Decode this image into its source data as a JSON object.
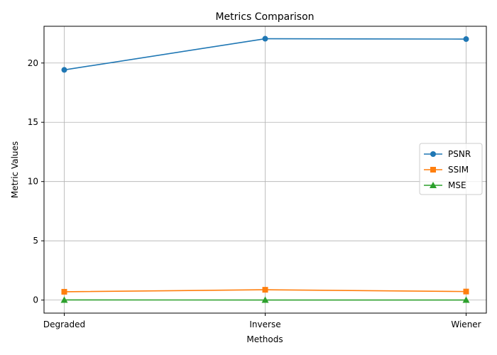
{
  "chart_data": {
    "type": "line",
    "title": "Metrics Comparison",
    "xlabel": "Methods",
    "ylabel": "Metric Values",
    "categories": [
      "Degraded",
      "Inverse",
      "Wiener"
    ],
    "series": [
      {
        "name": "PSNR",
        "values": [
          19.42,
          22.05,
          22.02
        ],
        "color": "#1f77b4",
        "marker": "circle"
      },
      {
        "name": "SSIM",
        "values": [
          0.7,
          0.87,
          0.72
        ],
        "color": "#ff7f0e",
        "marker": "square"
      },
      {
        "name": "MSE",
        "values": [
          0.011,
          0.006,
          0.006
        ],
        "color": "#2ca02c",
        "marker": "triangle"
      }
    ],
    "yticks": [
      "0",
      "5",
      "10",
      "15",
      "20"
    ],
    "ylim": [
      -1.1,
      23.1
    ],
    "grid": true,
    "legend_position": "center-right"
  }
}
